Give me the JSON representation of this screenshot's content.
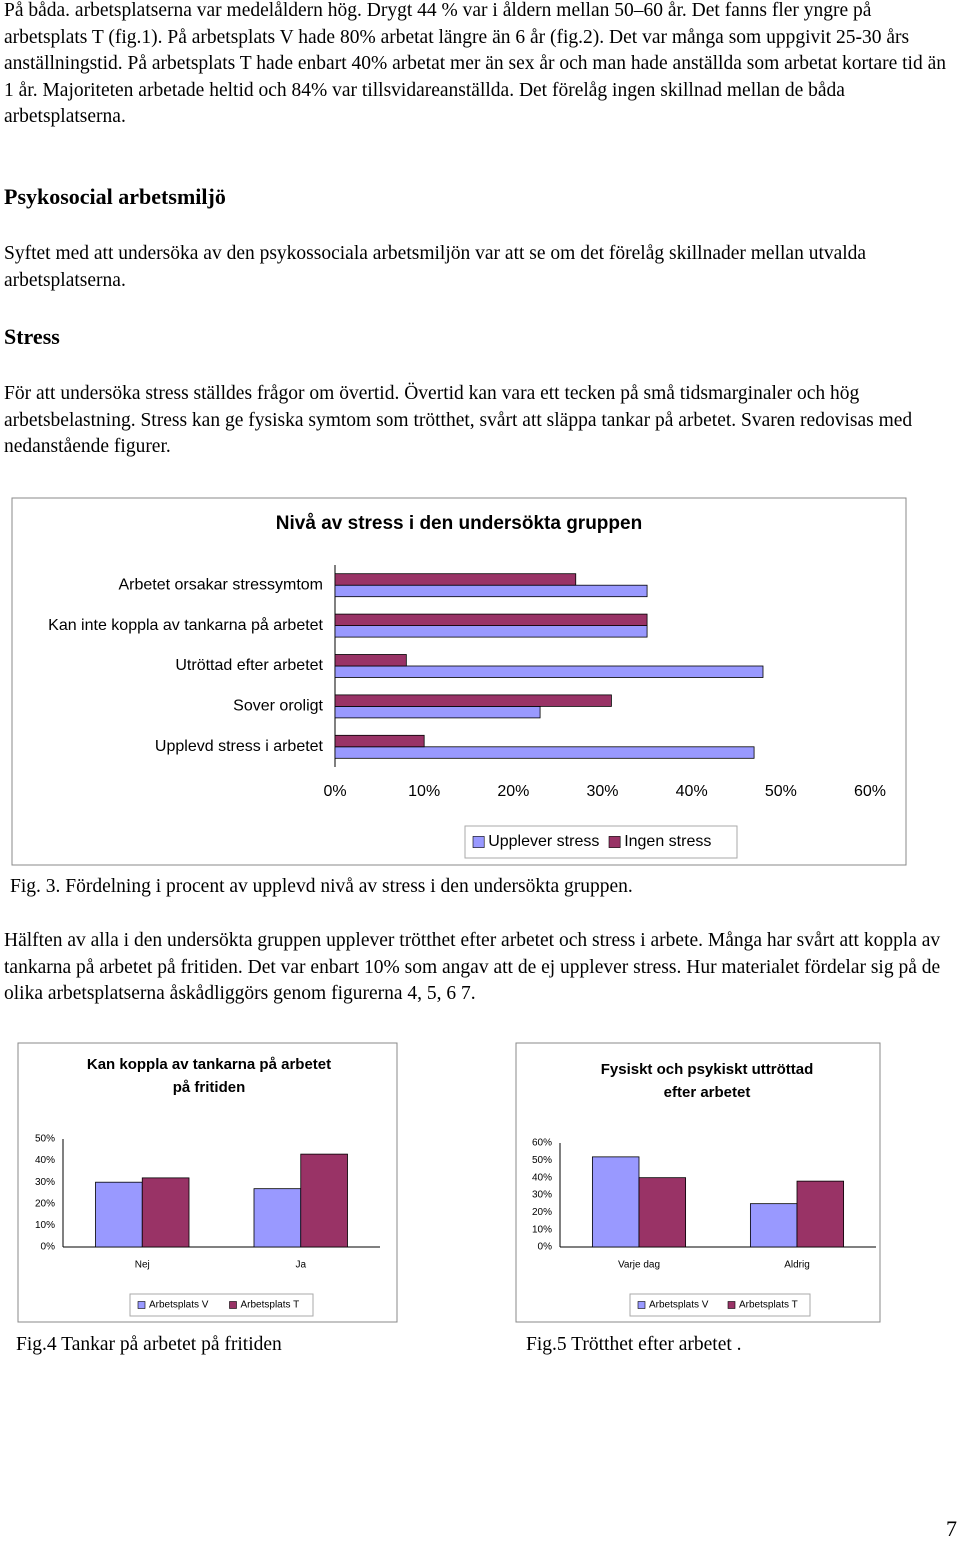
{
  "intro": "På båda. arbetsplatserna var medelåldern hög. Drygt 44 % var i åldern mellan 50–60 år. Det fanns fler yngre på arbetsplats T (fig.1). På arbetsplats V hade 80% arbetat längre än 6 år (fig.2). Det var många som uppgivit 25-30 års anställningstid. På arbetsplats T hade enbart 40% arbetat mer än sex år och man hade anställda som arbetat kortare tid än 1 år. Majoriteten arbetade heltid och 84% var tillsvidareanställda. Det förelåg ingen skillnad mellan de båda arbetsplatserna.",
  "section_title": "Psykosocial arbetsmiljö",
  "section_text": "Syftet med att undersöka av den psykossociala arbetsmiljön var att se om det förelåg skillnader mellan utvalda arbetsplatserna.",
  "subsection_title": "Stress",
  "subsection_text": "För att undersöka stress ställdes frågor om övertid. Övertid kan vara ett tecken på små tidsmarginaler och hög arbetsbelastning. Stress kan ge fysiska symtom som trötthet, svårt att släppa tankar på arbetet. Svaren redovisas med nedanstående figurer.",
  "figure_captions": [
    "Fig. 3. Fördelning i procent av upplevd nivå av stress i den undersökta gruppen.",
    "Fig.4 Tankar på arbetet på fritiden",
    "Fig.5 Trötthet efter arbetet ."
  ],
  "after_fig3": "Hälften av alla i den undersökta gruppen upplever trötthet efter arbetet  och stress i arbete. Många har svårt att koppla av tankarna på arbetet på fritiden. Det var enbart 10% som angav att de ej upplever stress. Hur materialet fördelar sig på de olika arbetsplatserna åskådliggörs genom figurerna 4, 5, 6 7.",
  "page_number": "7",
  "chart_data": [
    {
      "type": "hbar",
      "title": [
        "Nivå av stress i den undersökta gruppen"
      ],
      "categories": [
        "Arbetet orsakar stressymtom",
        "Kan inte koppla av tankarna på arbetet",
        "Utröttad efter arbetet",
        "Sover oroligt",
        "Upplevd stress i arbetet"
      ],
      "series": [
        {
          "name": "Upplever stress",
          "color": "#9999ff",
          "values": [
            35,
            35,
            48,
            23,
            47
          ]
        },
        {
          "name": "Ingen stress",
          "color": "#993366",
          "values": [
            27,
            35,
            8,
            31,
            10
          ]
        }
      ],
      "xlim": [
        0,
        60
      ],
      "xticks": [
        {
          "value": 0,
          "label": "0%"
        },
        {
          "value": 10,
          "label": "10%"
        },
        {
          "value": 20,
          "label": "20%"
        },
        {
          "value": 30,
          "label": "30%"
        },
        {
          "value": 40,
          "label": "40%"
        },
        {
          "value": 50,
          "label": "50%"
        },
        {
          "value": 60,
          "label": "60%"
        }
      ],
      "legend": "bottom"
    },
    {
      "type": "bar",
      "title": [
        "Kan koppla av tankarna på arbetet",
        "på fritiden"
      ],
      "categories": [
        "Nej",
        "Ja"
      ],
      "series": [
        {
          "name": "Arbetsplats V",
          "color": "#9999ff",
          "values": [
            30,
            27
          ]
        },
        {
          "name": "Arbetsplats T",
          "color": "#993366",
          "values": [
            32,
            43
          ]
        }
      ],
      "ylim": [
        0,
        50
      ],
      "yticks": [
        {
          "value": 0,
          "label": "0%"
        },
        {
          "value": 10,
          "label": "10%"
        },
        {
          "value": 20,
          "label": "20%"
        },
        {
          "value": 30,
          "label": "30%"
        },
        {
          "value": 40,
          "label": "40%"
        },
        {
          "value": 50,
          "label": "50%"
        }
      ],
      "legend": "bottom"
    },
    {
      "type": "bar",
      "title": [
        "Fysiskt och psykiskt uttröttad",
        "efter arbetet"
      ],
      "categories": [
        "Varje dag",
        "Aldrig"
      ],
      "series": [
        {
          "name": "Arbetsplats V",
          "color": "#9999ff",
          "values": [
            52,
            25
          ]
        },
        {
          "name": "Arbetsplats T",
          "color": "#993366",
          "values": [
            40,
            38
          ]
        }
      ],
      "ylim": [
        0,
        60
      ],
      "yticks": [
        {
          "value": 0,
          "label": "0%"
        },
        {
          "value": 10,
          "label": "10%"
        },
        {
          "value": 20,
          "label": "20%"
        },
        {
          "value": 30,
          "label": "30%"
        },
        {
          "value": 40,
          "label": "40%"
        },
        {
          "value": 50,
          "label": "50%"
        },
        {
          "value": 60,
          "label": "60%"
        }
      ],
      "legend": "bottom"
    }
  ]
}
